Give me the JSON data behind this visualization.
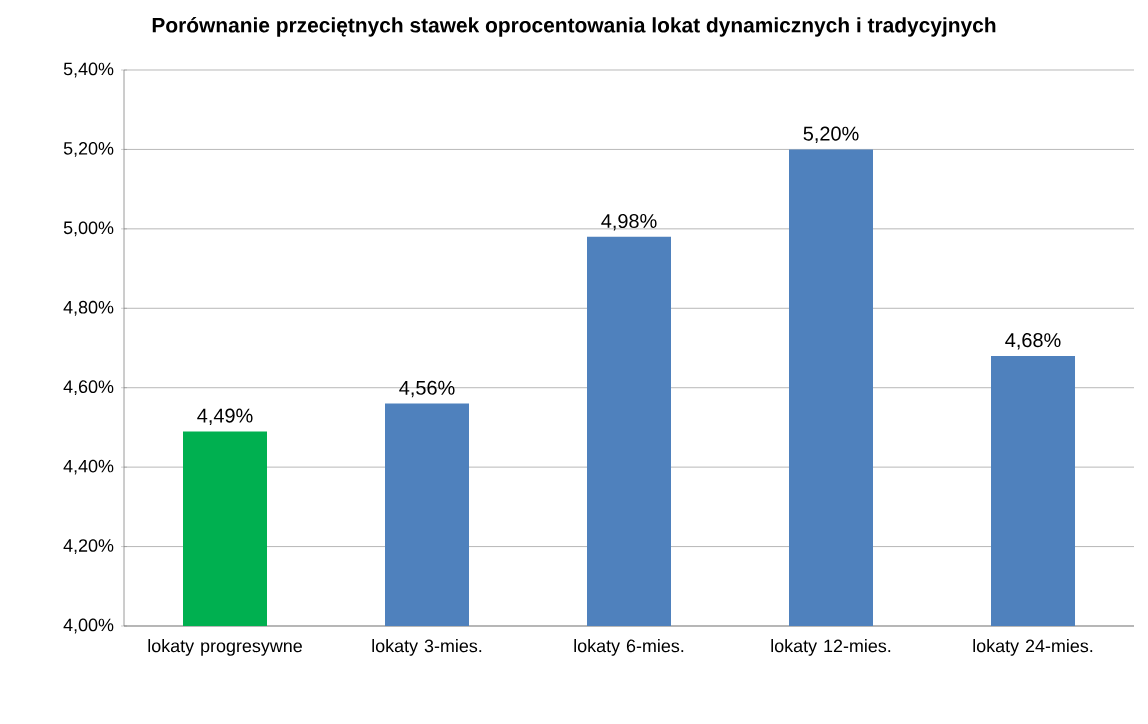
{
  "chart_data": {
    "type": "bar",
    "title": "Porównanie przeciętnych stawek oprocentowania lokat dynamicznych i tradycyjnych",
    "categories": [
      "lokaty progresywne",
      "lokaty 3-mies.",
      "lokaty 6-mies.",
      "lokaty 12-mies.",
      "lokaty 24-mies."
    ],
    "values": [
      4.49,
      4.56,
      4.98,
      5.2,
      4.68
    ],
    "value_labels": [
      "4,49%",
      "4,56%",
      "4,98%",
      "5,20%",
      "4,68%"
    ],
    "colors": [
      "#00b050",
      "#4f81bd",
      "#4f81bd",
      "#4f81bd",
      "#4f81bd"
    ],
    "ylim": [
      4.0,
      5.4
    ],
    "yticks": [
      {
        "value": 4.0,
        "label": "4,00%"
      },
      {
        "value": 4.2,
        "label": "4,20%"
      },
      {
        "value": 4.4,
        "label": "4,40%"
      },
      {
        "value": 4.6,
        "label": "4,60%"
      },
      {
        "value": 4.8,
        "label": "4,80%"
      },
      {
        "value": 5.0,
        "label": "5,00%"
      },
      {
        "value": 5.2,
        "label": "5,20%"
      },
      {
        "value": 5.4,
        "label": "5,40%"
      }
    ],
    "grid": "y"
  }
}
